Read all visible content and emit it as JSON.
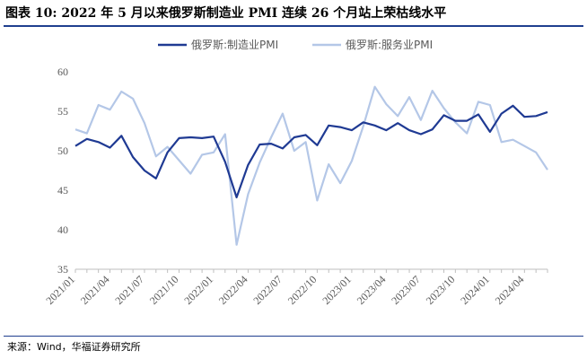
{
  "figure": {
    "title": "图表 10:  2022 年 5 月以来俄罗斯制造业 PMI 连续 26 个月站上荣枯线水平",
    "source": "来源：Wind，华福证券研究所"
  },
  "colors": {
    "series_1": "#1f3a93",
    "series_2": "#b4c7e7",
    "rule": "#1f3f8f",
    "axis": "#bfbfbf"
  },
  "chart_data": {
    "type": "line",
    "x": [
      "2021/01",
      "2021/02",
      "2021/03",
      "2021/04",
      "2021/05",
      "2021/06",
      "2021/07",
      "2021/08",
      "2021/09",
      "2021/10",
      "2021/11",
      "2021/12",
      "2022/01",
      "2022/02",
      "2022/03",
      "2022/04",
      "2022/05",
      "2022/06",
      "2022/07",
      "2022/08",
      "2022/09",
      "2022/10",
      "2022/11",
      "2022/12",
      "2023/01",
      "2023/02",
      "2023/03",
      "2023/04",
      "2023/05",
      "2023/06",
      "2023/07",
      "2023/08",
      "2023/09",
      "2023/10",
      "2023/11",
      "2023/12",
      "2024/01",
      "2024/02",
      "2024/03",
      "2024/04",
      "2024/05",
      "2024/06"
    ],
    "x_tick_labels": [
      "2021/01",
      "2021/04",
      "2021/07",
      "2021/10",
      "2022/01",
      "2022/04",
      "2022/07",
      "2022/10",
      "2023/01",
      "2023/04",
      "2023/07",
      "2023/10",
      "2024/01",
      "2024/04"
    ],
    "series": [
      {
        "name": "俄罗斯:制造业PMI",
        "values": [
          50.6,
          51.5,
          51.1,
          50.4,
          51.9,
          49.2,
          47.5,
          46.5,
          49.8,
          51.6,
          51.7,
          51.6,
          51.8,
          48.6,
          44.1,
          48.2,
          50.8,
          50.9,
          50.3,
          51.7,
          52.0,
          50.7,
          53.2,
          53.0,
          52.6,
          53.6,
          53.2,
          52.6,
          53.5,
          52.6,
          52.1,
          52.7,
          54.5,
          53.8,
          53.8,
          54.6,
          52.4,
          54.7,
          55.7,
          54.3,
          54.4,
          54.9
        ]
      },
      {
        "name": "俄罗斯:服务业PMI",
        "values": [
          52.7,
          52.2,
          55.8,
          55.2,
          57.5,
          56.6,
          53.5,
          49.3,
          50.5,
          48.8,
          47.1,
          49.5,
          49.8,
          52.1,
          38.1,
          44.5,
          48.5,
          51.7,
          54.7,
          50.0,
          51.1,
          43.7,
          48.3,
          45.9,
          48.7,
          53.1,
          58.1,
          55.9,
          54.4,
          56.8,
          53.9,
          57.6,
          55.4,
          53.6,
          52.2,
          56.2,
          55.8,
          51.1,
          51.4,
          50.6,
          49.8,
          47.6
        ]
      }
    ],
    "ylim": [
      35,
      60
    ],
    "yticks": [
      35,
      40,
      45,
      50,
      55,
      60
    ],
    "legend": "top-center",
    "grid": false
  }
}
